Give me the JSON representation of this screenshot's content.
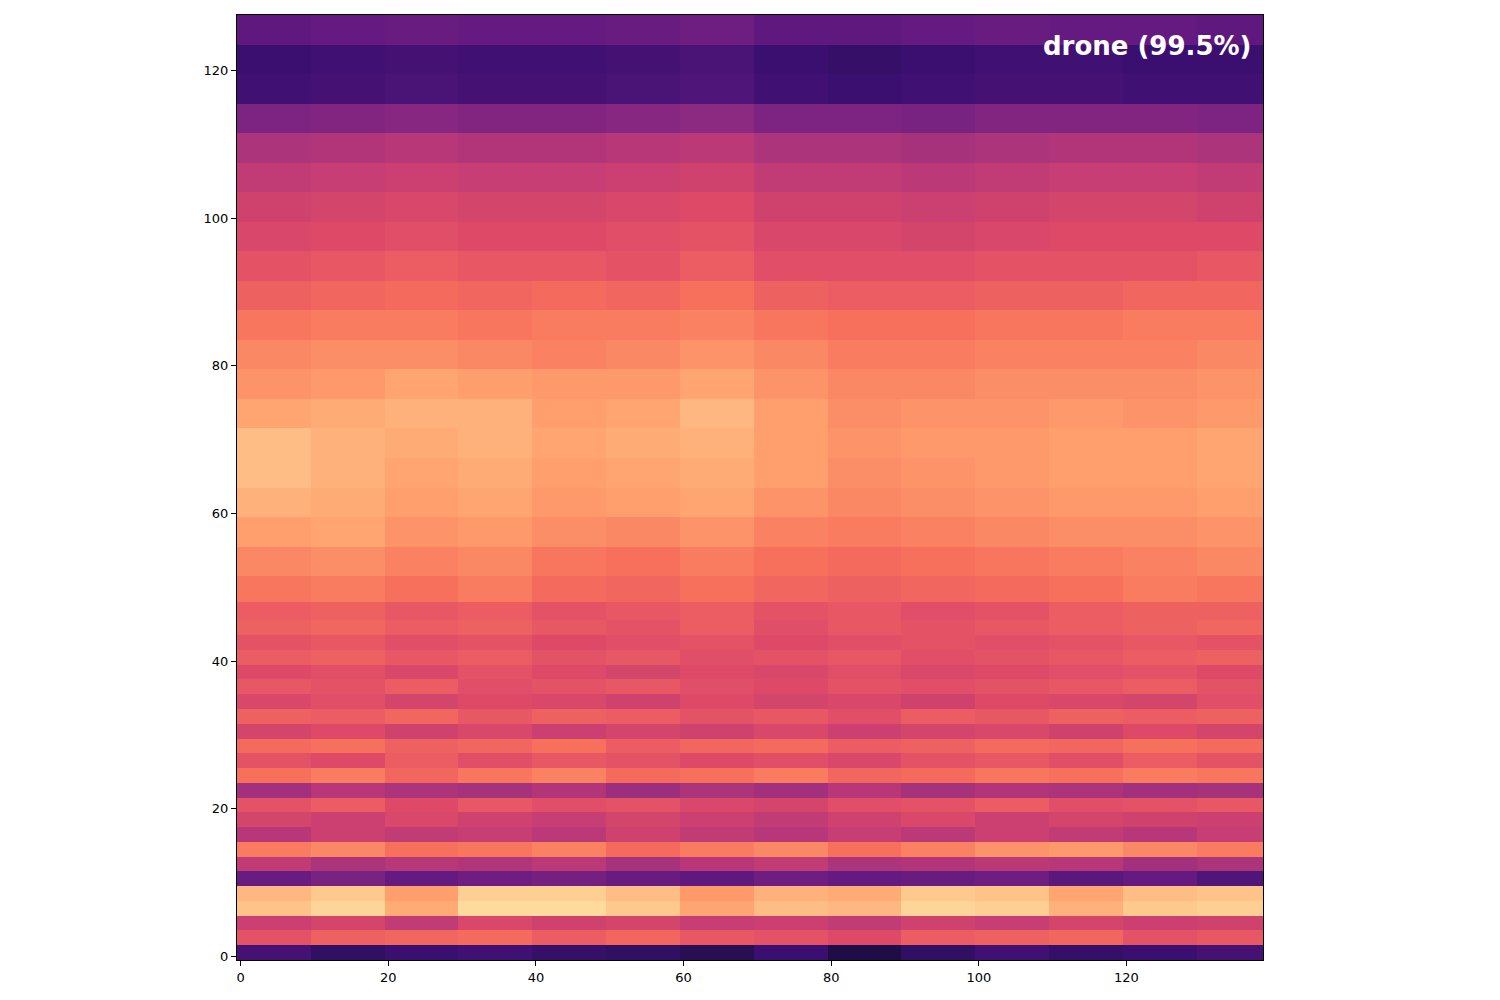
{
  "chart_data": {
    "type": "heatmap",
    "annotation": "drone (99.5%)",
    "color": "magma",
    "xlim": [
      -0.5,
      138.5
    ],
    "ylim": [
      -0.5,
      127.5
    ],
    "xticks": [
      0,
      20,
      40,
      60,
      80,
      100,
      120
    ],
    "yticks": [
      0,
      20,
      40,
      60,
      80,
      100,
      120
    ],
    "zlim": [
      -80,
      0
    ],
    "x": [
      4.5,
      14.5,
      24.5,
      34.5,
      44.5,
      54.5,
      64.5,
      74.5,
      84.5,
      94.5,
      104.5,
      114.5,
      124.5,
      134.5
    ],
    "y": [
      0.5,
      2.5,
      4.5,
      6.5,
      8.5,
      10.5,
      12.5,
      14.5,
      16.5,
      18.5,
      20.5,
      22.5,
      24.5,
      26.5,
      28.5,
      30.5,
      32.5,
      34.5,
      36.5,
      38.5,
      40.5,
      42.5,
      44.5,
      46.5,
      49.5,
      53.5,
      57.5,
      61.5,
      65.5,
      69.5,
      73.5,
      77.5,
      81.5,
      85.5,
      89.5,
      93.5,
      97.5,
      101.5,
      105.5,
      109.5,
      113.5,
      117.5,
      121.5,
      125.5
    ],
    "z": [
      [
        -62,
        -66,
        -64,
        -63,
        -65,
        -66,
        -68,
        -64,
        -70,
        -66,
        -63,
        -65,
        -64,
        -62
      ],
      [
        -30,
        -27,
        -26,
        -25,
        -28,
        -26,
        -29,
        -30,
        -32,
        -28,
        -27,
        -26,
        -30,
        -29
      ],
      [
        -36,
        -34,
        -38,
        -33,
        -35,
        -34,
        -37,
        -36,
        -38,
        -35,
        -37,
        -34,
        -36,
        -35
      ],
      [
        -10,
        -7,
        -14,
        -6,
        -6,
        -9,
        -15,
        -11,
        -12,
        -7,
        -8,
        -13,
        -9,
        -8
      ],
      [
        -12,
        -9,
        -16,
        -8,
        -8,
        -11,
        -17,
        -13,
        -14,
        -9,
        -10,
        -15,
        -11,
        -10
      ],
      [
        -55,
        -52,
        -56,
        -54,
        -53,
        -55,
        -57,
        -54,
        -56,
        -55,
        -54,
        -58,
        -56,
        -60
      ],
      [
        -38,
        -42,
        -40,
        -41,
        -39,
        -43,
        -40,
        -38,
        -42,
        -41,
        -39,
        -40,
        -44,
        -42
      ],
      [
        -22,
        -20,
        -24,
        -23,
        -21,
        -25,
        -22,
        -20,
        -24,
        -21,
        -18,
        -17,
        -20,
        -22
      ],
      [
        -40,
        -36,
        -38,
        -37,
        -39,
        -35,
        -38,
        -40,
        -37,
        -39,
        -36,
        -38,
        -40,
        -37
      ],
      [
        -34,
        -36,
        -33,
        -35,
        -37,
        -34,
        -36,
        -38,
        -35,
        -33,
        -36,
        -34,
        -35,
        -36
      ],
      [
        -30,
        -28,
        -32,
        -29,
        -31,
        -30,
        -33,
        -34,
        -31,
        -30,
        -28,
        -31,
        -30,
        -29
      ],
      [
        -44,
        -40,
        -42,
        -43,
        -41,
        -45,
        -42,
        -44,
        -40,
        -43,
        -41,
        -42,
        -44,
        -43
      ],
      [
        -24,
        -22,
        -26,
        -23,
        -21,
        -25,
        -24,
        -22,
        -26,
        -25,
        -23,
        -24,
        -22,
        -23
      ],
      [
        -30,
        -32,
        -28,
        -31,
        -29,
        -30,
        -32,
        -31,
        -33,
        -30,
        -29,
        -31,
        -28,
        -30
      ],
      [
        -25,
        -24,
        -27,
        -26,
        -24,
        -28,
        -26,
        -25,
        -28,
        -27,
        -25,
        -26,
        -24,
        -25
      ],
      [
        -34,
        -32,
        -35,
        -33,
        -36,
        -34,
        -35,
        -33,
        -36,
        -34,
        -33,
        -35,
        -32,
        -34
      ],
      [
        -27,
        -28,
        -26,
        -29,
        -27,
        -28,
        -30,
        -29,
        -31,
        -28,
        -29,
        -27,
        -28,
        -27
      ],
      [
        -33,
        -31,
        -34,
        -32,
        -33,
        -35,
        -32,
        -34,
        -33,
        -35,
        -32,
        -33,
        -34,
        -31
      ],
      [
        -29,
        -30,
        -28,
        -31,
        -30,
        -29,
        -31,
        -32,
        -30,
        -31,
        -30,
        -29,
        -28,
        -30
      ],
      [
        -32,
        -31,
        -33,
        -30,
        -32,
        -34,
        -32,
        -33,
        -31,
        -33,
        -32,
        -31,
        -30,
        -32
      ],
      [
        -28,
        -27,
        -29,
        -28,
        -30,
        -29,
        -31,
        -30,
        -29,
        -31,
        -30,
        -29,
        -28,
        -27
      ],
      [
        -30,
        -29,
        -31,
        -30,
        -32,
        -31,
        -30,
        -32,
        -31,
        -30,
        -31,
        -30,
        -29,
        -30
      ],
      [
        -27,
        -26,
        -28,
        -27,
        -29,
        -30,
        -28,
        -31,
        -29,
        -30,
        -29,
        -28,
        -27,
        -26
      ],
      [
        -28,
        -27,
        -29,
        -28,
        -30,
        -29,
        -28,
        -30,
        -29,
        -31,
        -30,
        -28,
        -27,
        -27
      ],
      [
        -23,
        -22,
        -24,
        -22,
        -25,
        -26,
        -24,
        -26,
        -27,
        -26,
        -25,
        -24,
        -22,
        -23
      ],
      [
        -20,
        -19,
        -21,
        -20,
        -23,
        -24,
        -22,
        -24,
        -25,
        -24,
        -23,
        -22,
        -21,
        -20
      ],
      [
        -16,
        -15,
        -18,
        -17,
        -19,
        -20,
        -18,
        -21,
        -22,
        -21,
        -20,
        -19,
        -19,
        -18
      ],
      [
        -13,
        -14,
        -16,
        -15,
        -17,
        -16,
        -15,
        -18,
        -20,
        -19,
        -18,
        -17,
        -17,
        -16
      ],
      [
        -11,
        -13,
        -15,
        -14,
        -16,
        -15,
        -14,
        -16,
        -19,
        -18,
        -17,
        -16,
        -16,
        -15
      ],
      [
        -11,
        -13,
        -14,
        -13,
        -15,
        -14,
        -13,
        -16,
        -18,
        -17,
        -17,
        -16,
        -16,
        -15
      ],
      [
        -15,
        -14,
        -13,
        -13,
        -16,
        -15,
        -12,
        -16,
        -19,
        -18,
        -18,
        -17,
        -18,
        -17
      ],
      [
        -18,
        -17,
        -15,
        -16,
        -17,
        -17,
        -15,
        -18,
        -20,
        -20,
        -19,
        -19,
        -19,
        -18
      ],
      [
        -20,
        -19,
        -19,
        -20,
        -21,
        -20,
        -18,
        -20,
        -22,
        -22,
        -21,
        -21,
        -21,
        -20
      ],
      [
        -23,
        -22,
        -22,
        -23,
        -22,
        -22,
        -21,
        -23,
        -24,
        -24,
        -23,
        -23,
        -22,
        -22
      ],
      [
        -27,
        -26,
        -25,
        -26,
        -25,
        -26,
        -24,
        -27,
        -28,
        -28,
        -27,
        -27,
        -26,
        -26
      ],
      [
        -30,
        -29,
        -28,
        -29,
        -29,
        -30,
        -28,
        -31,
        -31,
        -31,
        -30,
        -30,
        -30,
        -29
      ],
      [
        -33,
        -32,
        -31,
        -32,
        -32,
        -31,
        -30,
        -33,
        -33,
        -34,
        -33,
        -32,
        -32,
        -32
      ],
      [
        -35,
        -34,
        -33,
        -34,
        -34,
        -33,
        -32,
        -35,
        -35,
        -36,
        -35,
        -34,
        -34,
        -35
      ],
      [
        -38,
        -37,
        -36,
        -37,
        -37,
        -36,
        -35,
        -38,
        -38,
        -39,
        -38,
        -37,
        -37,
        -38
      ],
      [
        -42,
        -41,
        -40,
        -41,
        -41,
        -40,
        -39,
        -42,
        -42,
        -43,
        -42,
        -41,
        -41,
        -42
      ],
      [
        -51,
        -50,
        -49,
        -50,
        -50,
        -49,
        -48,
        -51,
        -51,
        -52,
        -50,
        -50,
        -50,
        -51
      ],
      [
        -63,
        -62,
        -61,
        -62,
        -62,
        -61,
        -60,
        -63,
        -64,
        -63,
        -62,
        -62,
        -63,
        -63
      ],
      [
        -64,
        -63,
        -62,
        -63,
        -63,
        -62,
        -61,
        -64,
        -65,
        -64,
        -63,
        -63,
        -64,
        -64
      ],
      [
        -57,
        -56,
        -55,
        -56,
        -56,
        -55,
        -54,
        -57,
        -57,
        -56,
        -55,
        -56,
        -56,
        -57
      ]
    ]
  }
}
